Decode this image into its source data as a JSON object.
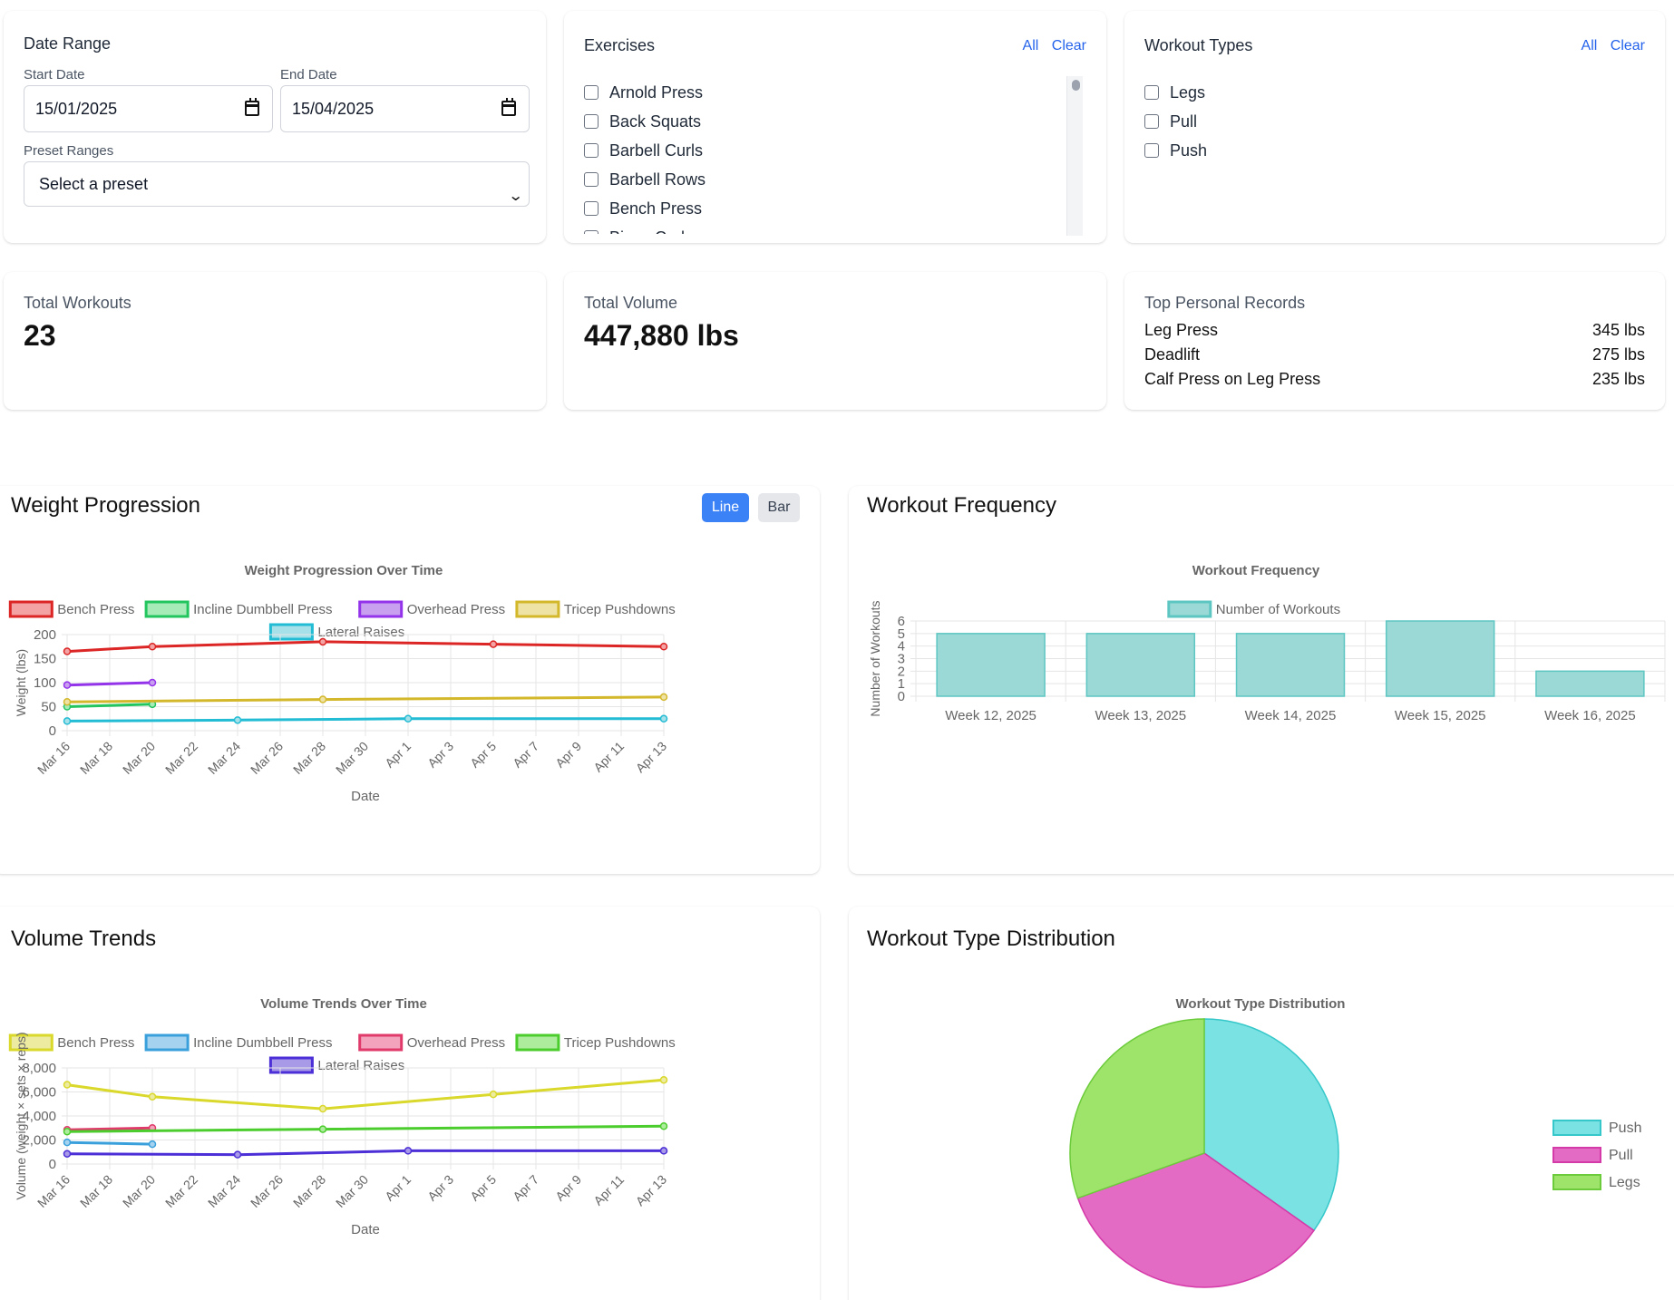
{
  "filters": {
    "date_range": {
      "title": "Date Range",
      "start_label": "Start Date",
      "start_value": "15/01/2025",
      "end_label": "End Date",
      "end_value": "15/04/2025",
      "preset_label": "Preset Ranges",
      "preset_value": "Select a preset"
    },
    "exercises": {
      "title": "Exercises",
      "all_label": "All",
      "clear_label": "Clear",
      "items": [
        "Arnold Press",
        "Back Squats",
        "Barbell Curls",
        "Barbell Rows",
        "Bench Press",
        "Bicep Curls"
      ]
    },
    "workout_types": {
      "title": "Workout Types",
      "all_label": "All",
      "clear_label": "Clear",
      "items": [
        "Legs",
        "Pull",
        "Push"
      ]
    }
  },
  "stats": {
    "total_workouts": {
      "label": "Total Workouts",
      "value": "23"
    },
    "total_volume": {
      "label": "Total Volume",
      "value": "447,880 lbs"
    },
    "top_prs": {
      "label": "Top Personal Records",
      "rows": [
        {
          "name": "Leg Press",
          "value": "345 lbs"
        },
        {
          "name": "Deadlift",
          "value": "275 lbs"
        },
        {
          "name": "Calf Press on Leg Press",
          "value": "235 lbs"
        }
      ]
    }
  },
  "panels": {
    "weight": {
      "title": "Weight Progression",
      "line_label": "Line",
      "bar_label": "Bar"
    },
    "frequency": {
      "title": "Workout Frequency"
    },
    "volume": {
      "title": "Volume Trends"
    },
    "distribution": {
      "title": "Workout Type Distribution"
    }
  },
  "chart_data": [
    {
      "id": "weight",
      "type": "line",
      "title": "Weight Progression Over Time",
      "xlabel": "Date",
      "ylabel": "Weight (lbs)",
      "ylim": [
        0,
        200
      ],
      "yticks": [
        "0",
        "50",
        "100",
        "150",
        "200"
      ],
      "xlim": [
        "2025-03-16",
        "2025-04-13"
      ],
      "xticks": [
        "Mar 16",
        "Mar 18",
        "Mar 20",
        "Mar 22",
        "Mar 24",
        "Mar 26",
        "Mar 28",
        "Mar 30",
        "Apr 1",
        "Apr 3",
        "Apr 5",
        "Apr 7",
        "Apr 9",
        "Apr 11",
        "Apr 13"
      ],
      "grid": true,
      "legend_position": "top",
      "series": [
        {
          "name": "Bench Press",
          "color": "#dc2626",
          "fill": "#f3a3a3",
          "points": [
            [
              "2025-03-16",
              165
            ],
            [
              "2025-03-20",
              175
            ],
            [
              "2025-03-28",
              185
            ],
            [
              "2025-04-05",
              180
            ],
            [
              "2025-04-13",
              175
            ]
          ]
        },
        {
          "name": "Incline Dumbbell Press",
          "color": "#22c55e",
          "fill": "#a7ebb9",
          "points": [
            [
              "2025-03-16",
              50
            ],
            [
              "2025-03-20",
              55
            ]
          ]
        },
        {
          "name": "Overhead Press",
          "color": "#9333ea",
          "fill": "#c99ff0",
          "points": [
            [
              "2025-03-16",
              95
            ],
            [
              "2025-03-20",
              100
            ]
          ]
        },
        {
          "name": "Tricep Pushdowns",
          "color": "#d4b82c",
          "fill": "#eee3a4",
          "points": [
            [
              "2025-03-16",
              60
            ],
            [
              "2025-03-28",
              65
            ],
            [
              "2025-04-13",
              70
            ]
          ]
        },
        {
          "name": "Lateral Raises",
          "color": "#22bcd4",
          "fill": "#a6e1ea",
          "points": [
            [
              "2025-03-16",
              20
            ],
            [
              "2025-03-24",
              22
            ],
            [
              "2025-04-01",
              25
            ],
            [
              "2025-04-13",
              25
            ]
          ]
        }
      ]
    },
    {
      "id": "frequency",
      "type": "bar",
      "title": "Workout Frequency",
      "xlabel": "",
      "ylabel": "Number of Workouts",
      "ylim": [
        0,
        6
      ],
      "yticks": [
        "0",
        "1",
        "2",
        "3",
        "4",
        "5",
        "6"
      ],
      "grid": true,
      "legend_position": "top",
      "categories": [
        "Week 12, 2025",
        "Week 13, 2025",
        "Week 14, 2025",
        "Week 15, 2025",
        "Week 16, 2025"
      ],
      "series": [
        {
          "name": "Number of Workouts",
          "color": "#5ec6c2",
          "fill": "#9ad9d6",
          "values": [
            5,
            5,
            5,
            6,
            2
          ]
        }
      ]
    },
    {
      "id": "volume",
      "type": "line",
      "title": "Volume Trends Over Time",
      "xlabel": "Date",
      "ylabel": "Volume (weight × sets × reps)",
      "ylim": [
        0,
        8000
      ],
      "yticks": [
        "0",
        "2,000",
        "4,000",
        "6,000",
        "8,000"
      ],
      "xlim": [
        "2025-03-16",
        "2025-04-13"
      ],
      "xticks": [
        "Mar 16",
        "Mar 18",
        "Mar 20",
        "Mar 22",
        "Mar 24",
        "Mar 26",
        "Mar 28",
        "Mar 30",
        "Apr 1",
        "Apr 3",
        "Apr 5",
        "Apr 7",
        "Apr 9",
        "Apr 11",
        "Apr 13"
      ],
      "grid": true,
      "legend_position": "top",
      "series": [
        {
          "name": "Bench Press",
          "color": "#d9d82b",
          "fill": "#eceba0",
          "points": [
            [
              "2025-03-16",
              6600
            ],
            [
              "2025-03-20",
              5600
            ],
            [
              "2025-03-28",
              4600
            ],
            [
              "2025-04-05",
              5800
            ],
            [
              "2025-04-13",
              7000
            ]
          ]
        },
        {
          "name": "Incline Dumbbell Press",
          "color": "#3aa0dc",
          "fill": "#a5d2ef",
          "points": [
            [
              "2025-03-16",
              1800
            ],
            [
              "2025-03-20",
              1650
            ]
          ]
        },
        {
          "name": "Overhead Press",
          "color": "#e03a6b",
          "fill": "#f3a3bb",
          "points": [
            [
              "2025-03-16",
              2850
            ],
            [
              "2025-03-20",
              3000
            ]
          ]
        },
        {
          "name": "Tricep Pushdowns",
          "color": "#4ccd2e",
          "fill": "#acec9c",
          "points": [
            [
              "2025-03-16",
              2700
            ],
            [
              "2025-03-28",
              2900
            ],
            [
              "2025-04-13",
              3150
            ]
          ]
        },
        {
          "name": "Lateral Raises",
          "color": "#4c2fd6",
          "fill": "#a99ae8",
          "points": [
            [
              "2025-03-16",
              850
            ],
            [
              "2025-03-24",
              780
            ],
            [
              "2025-04-01",
              1100
            ],
            [
              "2025-04-13",
              1100
            ]
          ]
        }
      ]
    },
    {
      "id": "distribution",
      "type": "pie",
      "title": "Workout Type Distribution",
      "legend_position": "right",
      "categories": [
        "Push",
        "Pull",
        "Legs"
      ],
      "values": [
        8,
        8,
        7
      ],
      "colors": [
        "#7ae2e2",
        "#e46bc4",
        "#9ee46a"
      ],
      "borders": [
        "#35c7c9",
        "#d43aa8",
        "#6ccb3b"
      ]
    }
  ]
}
